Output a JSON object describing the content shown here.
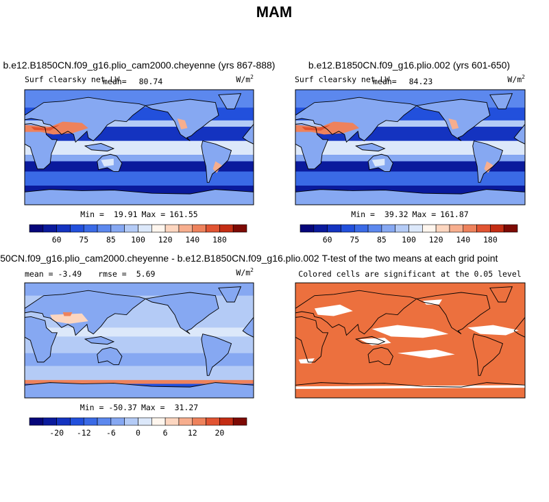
{
  "title": "MAM",
  "panels": [
    {
      "title": "b.e12.B1850CN.f09_g16.plio_cam2000.cheyenne (yrs 867-888)",
      "variable": "Surf clearsky net LW",
      "mean_label": "mean=",
      "mean": 80.74,
      "units": "W/m",
      "units_exponent": "2",
      "min_label": "Min =",
      "min": 19.91,
      "max_label": "Max =",
      "max": 161.55,
      "colorbar": {
        "labels": [
          60,
          75,
          85,
          100,
          120,
          140,
          180
        ],
        "colors": [
          "#06067a",
          "#0a1a9c",
          "#1433c0",
          "#2250dc",
          "#3a6ae6",
          "#5c88ee",
          "#86a8f2",
          "#b4cbf6",
          "#dce8fa",
          "#fff6ee",
          "#fcd6c0",
          "#f7ae8e",
          "#ee825c",
          "#e15432",
          "#c42d14",
          "#7d0a04"
        ]
      }
    },
    {
      "title": "b.e12.B1850CN.f09_g16.plio.002 (yrs 601-650)",
      "variable": "Surf clearsky net LW",
      "mean_label": "mean=",
      "mean": 84.23,
      "units": "W/m",
      "units_exponent": "2",
      "min_label": "Min =",
      "min": 39.32,
      "max_label": "Max =",
      "max": 161.87,
      "colorbar": {
        "labels": [
          60,
          75,
          85,
          100,
          120,
          140,
          180
        ],
        "colors": [
          "#06067a",
          "#0a1a9c",
          "#1433c0",
          "#2250dc",
          "#3a6ae6",
          "#5c88ee",
          "#86a8f2",
          "#b4cbf6",
          "#dce8fa",
          "#fff6ee",
          "#fcd6c0",
          "#f7ae8e",
          "#ee825c",
          "#e15432",
          "#c42d14",
          "#7d0a04"
        ]
      }
    },
    {
      "title": "50CN.f09_g16.plio_cam2000.cheyenne - b.e12.B1850CN.f09_g16.plio.002",
      "mean_label": "mean =",
      "mean": -3.49,
      "rmse_label": "rmse =",
      "rmse": 5.69,
      "units": "W/m",
      "units_exponent": "2",
      "min_label": "Min =",
      "min": -50.37,
      "max_label": "Max =",
      "max": 31.27,
      "colorbar": {
        "labels": [
          -20,
          -12,
          -6,
          0,
          6,
          12,
          20
        ],
        "colors": [
          "#06067a",
          "#0a1a9c",
          "#1433c0",
          "#2250dc",
          "#3a6ae6",
          "#5c88ee",
          "#86a8f2",
          "#b4cbf6",
          "#dce8fa",
          "#fff6ee",
          "#fcd6c0",
          "#f7ae8e",
          "#ee825c",
          "#e15432",
          "#c42d14",
          "#7d0a04"
        ]
      }
    },
    {
      "title": "T-test of the two means at each grid point",
      "subtitle": "Colored cells are significant at the 0.05 level"
    }
  ]
}
